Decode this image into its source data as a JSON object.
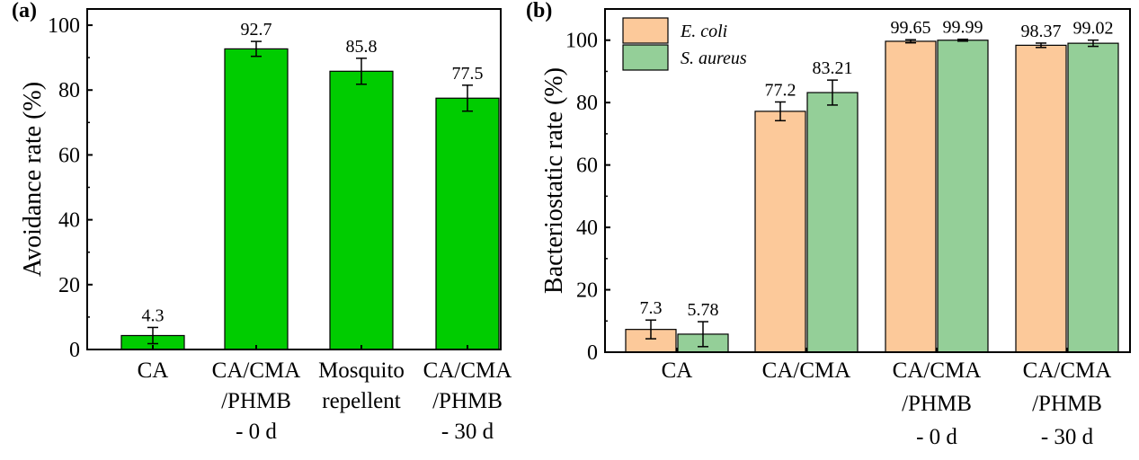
{
  "chart_data": [
    {
      "panel": "(a)",
      "type": "bar",
      "ylabel": "Avoidance rate (%)",
      "ylim": [
        0,
        105
      ],
      "yticks": [
        0,
        20,
        40,
        60,
        80,
        100
      ],
      "categories": [
        [
          "CA"
        ],
        [
          "CA/CMA",
          "/PHMB",
          "- 0 d"
        ],
        [
          "Mosquito",
          "repellent"
        ],
        [
          "CA/CMA",
          "/PHMB",
          "- 30 d"
        ]
      ],
      "series": [
        {
          "name": "Avoidance rate",
          "color": "#00cc00",
          "values": [
            4.3,
            92.7,
            85.8,
            77.5
          ],
          "errors": [
            2.5,
            2.3,
            4.0,
            4.0
          ],
          "labels": [
            "4.3",
            "92.7",
            "85.8",
            "77.5"
          ]
        }
      ]
    },
    {
      "panel": "(b)",
      "type": "bar",
      "ylabel": "Bacteriostatic rate (%)",
      "ylim": [
        0,
        110
      ],
      "yticks": [
        0,
        20,
        40,
        60,
        80,
        100
      ],
      "legend_position": "top-left",
      "categories": [
        [
          "CA"
        ],
        [
          "CA/CMA"
        ],
        [
          "CA/CMA",
          "/PHMB",
          "- 0 d"
        ],
        [
          "CA/CMA",
          "/PHMB",
          "- 30 d"
        ]
      ],
      "series": [
        {
          "name": "E. coli",
          "color": "#fcc99a",
          "values": [
            7.3,
            77.2,
            99.65,
            98.37
          ],
          "errors": [
            3.0,
            3.0,
            0.5,
            0.7
          ],
          "labels": [
            "7.3",
            "77.2",
            "99.65",
            "98.37"
          ]
        },
        {
          "name": "S. aureus",
          "color": "#94cf98",
          "values": [
            5.78,
            83.21,
            99.99,
            99.02
          ],
          "errors": [
            4.0,
            4.0,
            0.3,
            1.0
          ],
          "labels": [
            "5.78",
            "83.21",
            "99.99",
            "99.02"
          ]
        }
      ]
    }
  ]
}
